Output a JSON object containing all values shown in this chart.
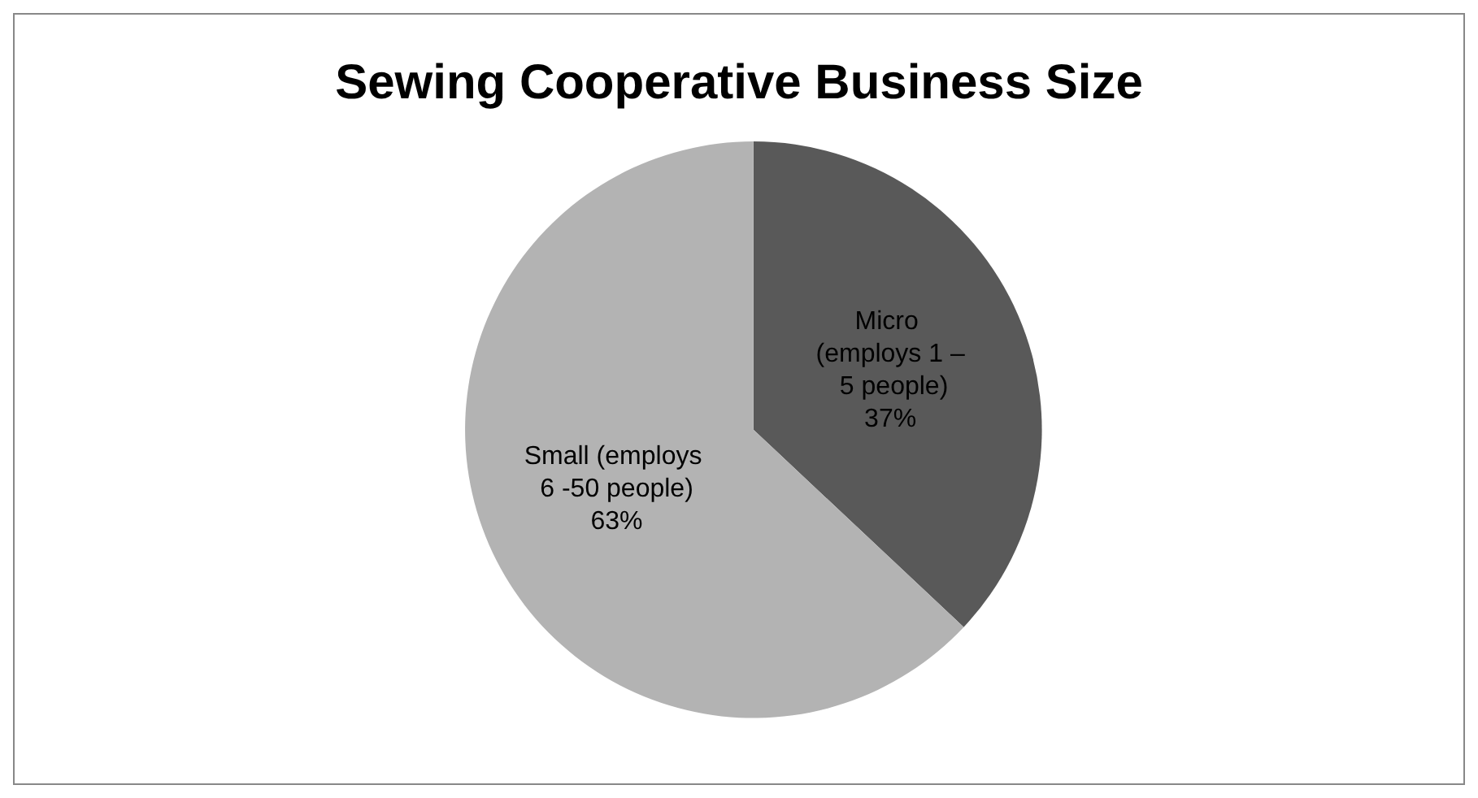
{
  "chart_data": {
    "type": "pie",
    "title": "Sewing Cooperative Business Size",
    "categories": [
      "Micro (employs 1 – 5 people)",
      "Small (employs 6 -50 people)"
    ],
    "values": [
      37,
      63
    ],
    "colors": [
      "#595959",
      "#b3b3b3"
    ],
    "value_labels": [
      "37%",
      "63%"
    ],
    "legend": false
  }
}
